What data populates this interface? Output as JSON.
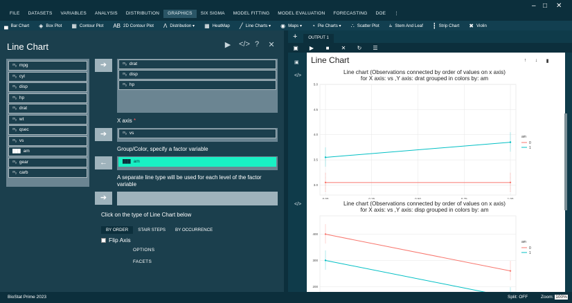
{
  "window": {
    "min": "–",
    "max": "□",
    "close": "✕"
  },
  "menu": [
    "FILE",
    "DATASETS",
    "VARIABLES",
    "ANALYSIS",
    "DISTRIBUTION",
    "GRAPHICS",
    "SIX SIGMA",
    "MODEL FITTING",
    "MODEL EVALUATION",
    "FORECASTING",
    "DOE"
  ],
  "menu_active": "GRAPHICS",
  "menu_more": "⋮",
  "toolbar": [
    {
      "icon": "bar-chart-icon",
      "glyph": "▄",
      "label": "Bar Chart"
    },
    {
      "icon": "box-plot-icon",
      "glyph": "◈",
      "label": "Box Plot"
    },
    {
      "icon": "contour-plot-icon",
      "glyph": "▦",
      "label": "Contour Plot"
    },
    {
      "icon": "2d-contour-icon",
      "glyph": "AB",
      "label": "2D Contour Plot"
    },
    {
      "icon": "distribution-icon",
      "glyph": "Λ",
      "label": "Distribution ▾"
    },
    {
      "icon": "heatmap-icon",
      "glyph": "▦",
      "label": "HeatMap"
    },
    {
      "icon": "line-charts-icon",
      "glyph": "╱",
      "label": "Line Charts ▾"
    },
    {
      "icon": "maps-icon",
      "glyph": "◉",
      "label": "Maps ▾"
    },
    {
      "icon": "pie-charts-icon",
      "glyph": "◔",
      "label": "Pie Charts ▾"
    },
    {
      "icon": "scatter-plot-icon",
      "glyph": "∴",
      "label": "Scatter Plot"
    },
    {
      "icon": "stem-leaf-icon",
      "glyph": "⫨",
      "label": "Stem And Leaf"
    },
    {
      "icon": "strip-chart-icon",
      "glyph": "┇",
      "label": "Strip Chart"
    },
    {
      "icon": "violin-icon",
      "glyph": "✖",
      "label": "Violin"
    }
  ],
  "dialog": {
    "title": "Line Chart",
    "run": "▶",
    "code": "</>",
    "help": "?",
    "close": "✕",
    "variables": [
      {
        "name": "mpg",
        "type": "scale"
      },
      {
        "name": "cyl",
        "type": "scale"
      },
      {
        "name": "disp",
        "type": "scale"
      },
      {
        "name": "hp",
        "type": "scale"
      },
      {
        "name": "drat",
        "type": "scale"
      },
      {
        "name": "wt",
        "type": "scale"
      },
      {
        "name": "qsec",
        "type": "scale"
      },
      {
        "name": "vs",
        "type": "scale"
      },
      {
        "name": "am",
        "type": "factor"
      },
      {
        "name": "gear",
        "type": "scale"
      },
      {
        "name": "carb",
        "type": "scale"
      }
    ],
    "scale_glyph": "²³₃",
    "factor_glyph": "███",
    "y_vars": [
      "drat",
      "disp",
      "hp"
    ],
    "x_label": "X axis",
    "x_req": "*",
    "x_var": "vs",
    "group_label": "Group/Color, specify a factor variable",
    "group_var": "am",
    "linetype_label": "A separate line type will be used for each level of the factor variable",
    "type_label": "Click on the type of Line Chart below",
    "tabs": [
      "BY ORDER",
      "STAIR STEPS",
      "BY OCCURRENCE"
    ],
    "tab_active": "BY ORDER",
    "flip_label": "Flip Axis",
    "options_label": "OPTIONS",
    "facets_label": "FACETS",
    "arrow_right": "➔",
    "arrow_left": "←"
  },
  "output": {
    "plus": "+",
    "tab": "OUTPUT 1",
    "tools": [
      "▣",
      "▶",
      "■",
      "✕",
      "↻",
      "☰"
    ],
    "title": "Line Chart",
    "icons": [
      "↑",
      "↓",
      "▮"
    ],
    "gutter": [
      "▣",
      "</>",
      "</>"
    ]
  },
  "chart_data": [
    {
      "type": "line",
      "title": [
        "Line chart (Observations connected by order of values on x axis)",
        "for X axis: vs ,Y axis: drat grouped in colors by: am"
      ],
      "xlabel": "",
      "ylabel": "",
      "x_ticks": [
        "0.00",
        "0.25",
        "0.50",
        "0.75",
        "1.00"
      ],
      "y_ticks": [
        "3.0",
        "3.5",
        "4.0",
        "4.5",
        "5.0"
      ],
      "xlim": [
        0,
        1
      ],
      "ylim": [
        2.8,
        5.0
      ],
      "series": [
        {
          "name": "0",
          "color": "#f8766d",
          "x": [
            0,
            1
          ],
          "y": [
            3.05,
            3.05
          ]
        },
        {
          "name": "1",
          "color": "#00bfc4",
          "x": [
            0,
            1
          ],
          "y": [
            3.55,
            3.85
          ]
        }
      ],
      "legend_title": "am",
      "legend": "right",
      "grid": true
    },
    {
      "type": "line",
      "title": [
        "Line chart (Observations connected by order of values on x axis)",
        "for X axis: vs ,Y axis: disp grouped in colors by: am"
      ],
      "xlabel": "",
      "ylabel": "",
      "y_ticks": [
        "200",
        "300",
        "400"
      ],
      "ylim": [
        180,
        470
      ],
      "xlim": [
        0,
        1
      ],
      "series": [
        {
          "name": "0",
          "color": "#f8766d",
          "x": [
            0,
            1
          ],
          "y": [
            400,
            260
          ]
        },
        {
          "name": "1",
          "color": "#00bfc4",
          "x": [
            0,
            1
          ],
          "y": [
            300,
            160
          ]
        }
      ],
      "legend_title": "am",
      "legend": "right",
      "grid": true
    }
  ],
  "status": {
    "brand": "BioStat Prime 2023",
    "split": "Split: OFF",
    "zoom_label": "Zoom:",
    "zoom_value": "100%"
  }
}
